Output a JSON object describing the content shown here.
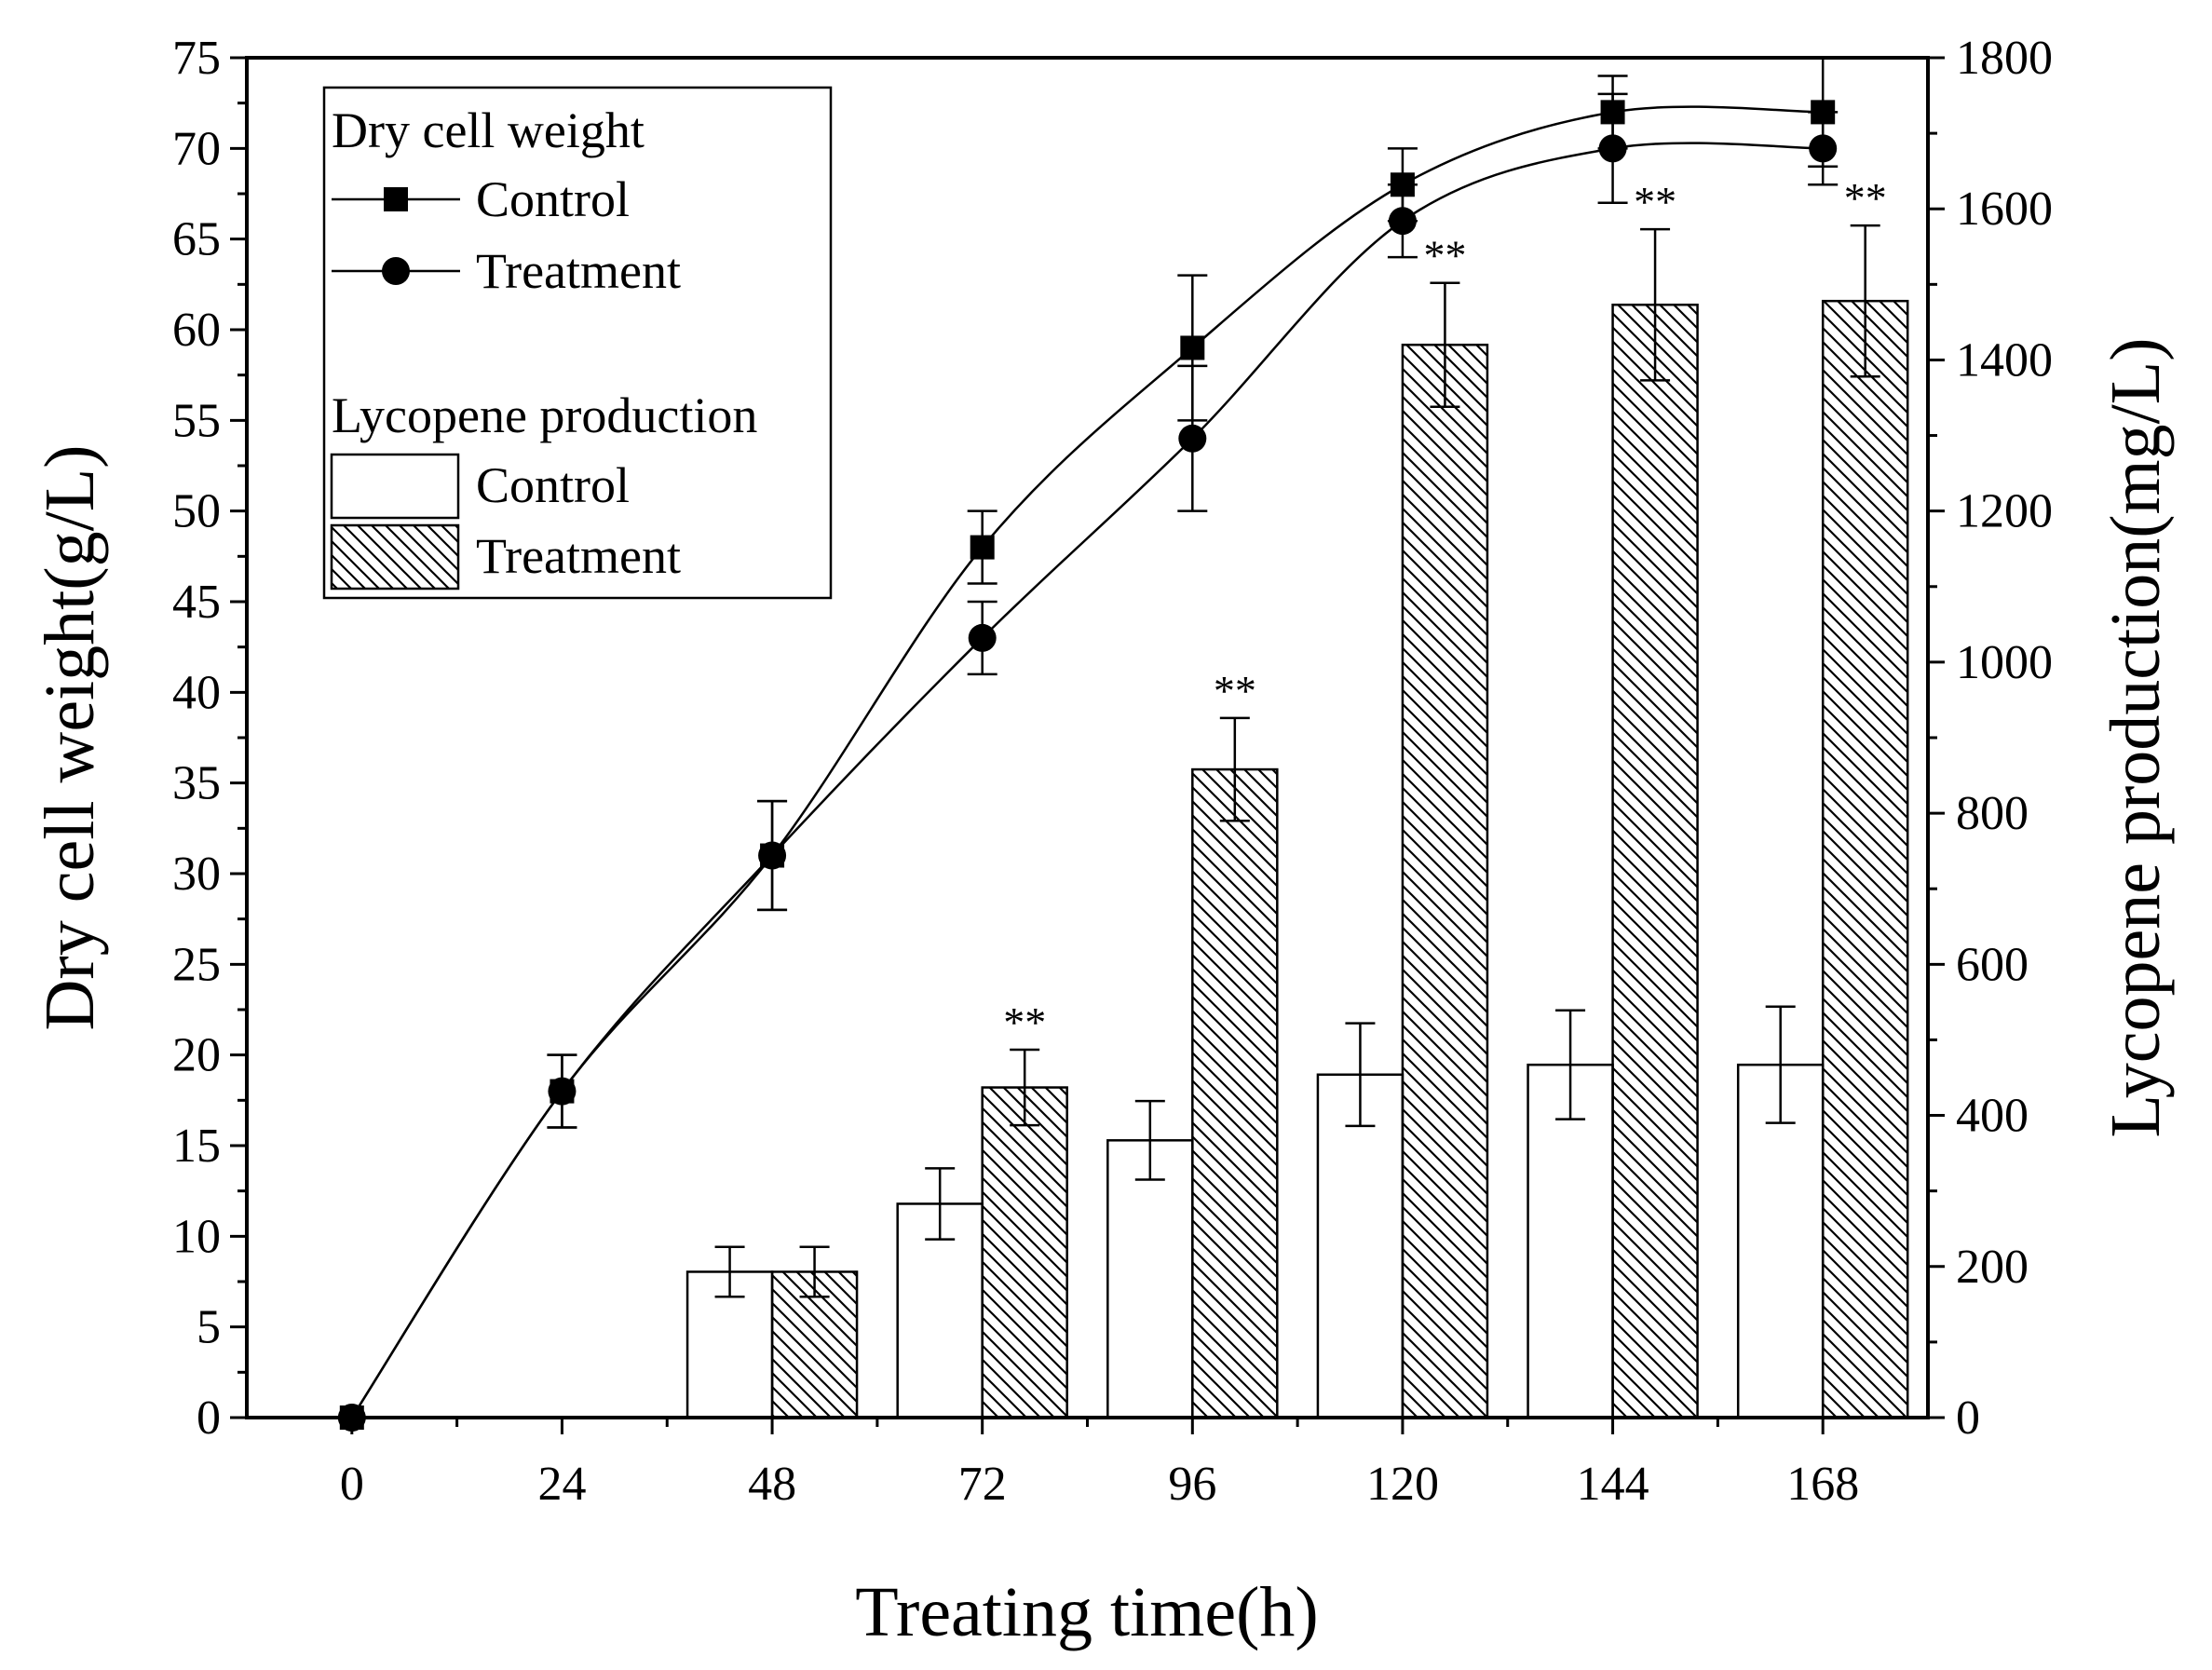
{
  "chart_data": {
    "type": "bar+line",
    "xlabel": "Treating time(h)",
    "ylabel_left": "Dry cell weight(g/L)",
    "ylabel_right": "Lycopene production(mg/L)",
    "x_ticks": [
      "0",
      "24",
      "48",
      "72",
      "96",
      "120",
      "144",
      "168"
    ],
    "x_values": [
      0,
      24,
      48,
      72,
      96,
      120,
      144,
      168
    ],
    "xlim": [
      -12,
      180
    ],
    "y_left": {
      "lim": [
        0,
        75
      ],
      "ticks": [
        0,
        5,
        10,
        15,
        20,
        25,
        30,
        35,
        40,
        45,
        50,
        55,
        60,
        65,
        70,
        75
      ]
    },
    "y_right": {
      "lim": [
        0,
        1800
      ],
      "ticks": [
        0,
        200,
        400,
        600,
        800,
        1000,
        1200,
        1400,
        1600,
        1800
      ]
    },
    "line_series": [
      {
        "name": "Control",
        "marker": "square",
        "x": [
          0,
          24,
          48,
          72,
          96,
          120,
          144,
          168
        ],
        "y": [
          0,
          18,
          31,
          48,
          59,
          68,
          72,
          72
        ],
        "err": [
          0,
          2,
          3,
          2,
          4,
          2,
          2,
          3
        ]
      },
      {
        "name": "Treatment",
        "marker": "circle",
        "x": [
          0,
          24,
          48,
          72,
          96,
          120,
          144,
          168
        ],
        "y": [
          0,
          18,
          31,
          43,
          54,
          66,
          70,
          70
        ],
        "err": [
          0,
          2,
          3,
          2,
          4,
          2,
          3,
          2
        ]
      }
    ],
    "bar_series": [
      {
        "name": "Control",
        "pattern": "none",
        "x": [
          48,
          72,
          96,
          120,
          144,
          168
        ],
        "values": [
          193,
          283,
          367,
          454,
          467,
          467
        ],
        "err": [
          33,
          47,
          52,
          68,
          72,
          77
        ]
      },
      {
        "name": "Treatment",
        "pattern": "hatched",
        "x": [
          48,
          72,
          96,
          120,
          144,
          168
        ],
        "values": [
          193,
          437,
          858,
          1420,
          1473,
          1478
        ],
        "err": [
          33,
          50,
          68,
          82,
          100,
          100
        ],
        "significance": [
          "",
          "**",
          "**",
          "**",
          "**",
          "**"
        ]
      }
    ],
    "legend": {
      "position": "top-left",
      "group1_title": "Dry cell weight",
      "group1_items": [
        "Control",
        "Treatment"
      ],
      "group2_title": "Lycopene production",
      "group2_items": [
        "Control",
        "Treatment"
      ]
    }
  }
}
